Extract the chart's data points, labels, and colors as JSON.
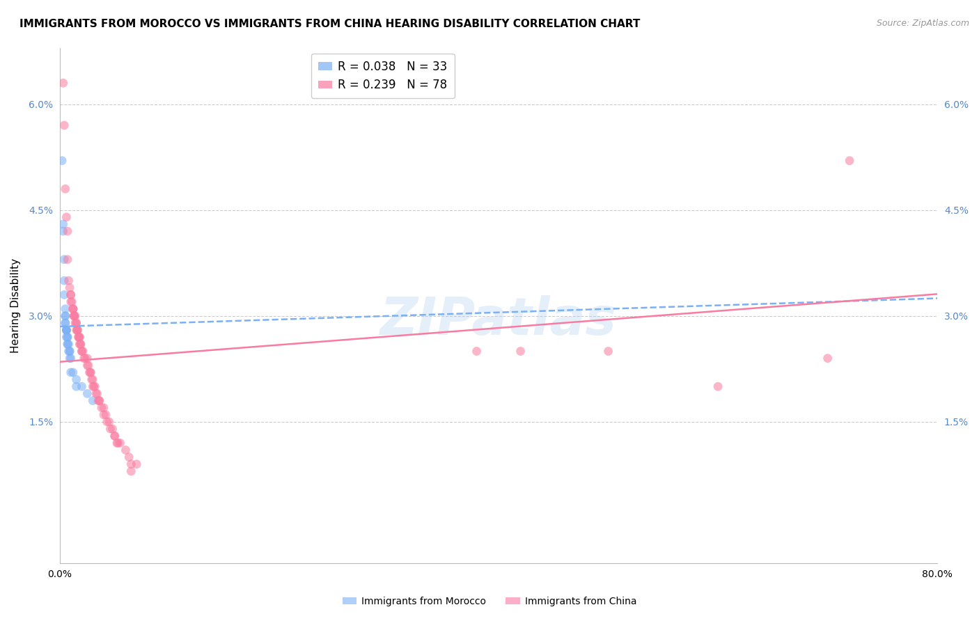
{
  "title": "IMMIGRANTS FROM MOROCCO VS IMMIGRANTS FROM CHINA HEARING DISABILITY CORRELATION CHART",
  "source": "Source: ZipAtlas.com",
  "ylabel": "Hearing Disability",
  "ytick_labels": [
    "1.5%",
    "3.0%",
    "4.5%",
    "6.0%"
  ],
  "ytick_values": [
    0.015,
    0.03,
    0.045,
    0.06
  ],
  "xlim": [
    0.0,
    0.8
  ],
  "ylim": [
    -0.005,
    0.068
  ],
  "legend_entries": [
    {
      "label": "R = 0.038   N = 33",
      "color": "#7ab0f5"
    },
    {
      "label": "R = 0.239   N = 78",
      "color": "#f97ba0"
    }
  ],
  "watermark": "ZIPatlas",
  "morocco_scatter": [
    [
      0.002,
      0.052
    ],
    [
      0.003,
      0.043
    ],
    [
      0.003,
      0.042
    ],
    [
      0.004,
      0.038
    ],
    [
      0.004,
      0.035
    ],
    [
      0.004,
      0.033
    ],
    [
      0.005,
      0.031
    ],
    [
      0.005,
      0.03
    ],
    [
      0.005,
      0.03
    ],
    [
      0.005,
      0.029
    ],
    [
      0.005,
      0.029
    ],
    [
      0.006,
      0.028
    ],
    [
      0.006,
      0.028
    ],
    [
      0.006,
      0.028
    ],
    [
      0.006,
      0.028
    ],
    [
      0.006,
      0.027
    ],
    [
      0.007,
      0.027
    ],
    [
      0.007,
      0.027
    ],
    [
      0.007,
      0.026
    ],
    [
      0.007,
      0.026
    ],
    [
      0.008,
      0.026
    ],
    [
      0.008,
      0.025
    ],
    [
      0.009,
      0.025
    ],
    [
      0.009,
      0.025
    ],
    [
      0.009,
      0.024
    ],
    [
      0.01,
      0.024
    ],
    [
      0.01,
      0.022
    ],
    [
      0.012,
      0.022
    ],
    [
      0.015,
      0.021
    ],
    [
      0.015,
      0.02
    ],
    [
      0.02,
      0.02
    ],
    [
      0.025,
      0.019
    ],
    [
      0.03,
      0.018
    ]
  ],
  "china_scatter": [
    [
      0.003,
      0.063
    ],
    [
      0.004,
      0.057
    ],
    [
      0.005,
      0.048
    ],
    [
      0.006,
      0.044
    ],
    [
      0.007,
      0.042
    ],
    [
      0.007,
      0.038
    ],
    [
      0.008,
      0.035
    ],
    [
      0.009,
      0.034
    ],
    [
      0.01,
      0.033
    ],
    [
      0.01,
      0.033
    ],
    [
      0.01,
      0.032
    ],
    [
      0.011,
      0.032
    ],
    [
      0.012,
      0.031
    ],
    [
      0.012,
      0.031
    ],
    [
      0.012,
      0.031
    ],
    [
      0.013,
      0.03
    ],
    [
      0.013,
      0.03
    ],
    [
      0.013,
      0.03
    ],
    [
      0.014,
      0.03
    ],
    [
      0.014,
      0.029
    ],
    [
      0.015,
      0.029
    ],
    [
      0.015,
      0.029
    ],
    [
      0.015,
      0.028
    ],
    [
      0.016,
      0.028
    ],
    [
      0.016,
      0.028
    ],
    [
      0.016,
      0.028
    ],
    [
      0.017,
      0.027
    ],
    [
      0.017,
      0.027
    ],
    [
      0.018,
      0.027
    ],
    [
      0.018,
      0.027
    ],
    [
      0.018,
      0.026
    ],
    [
      0.019,
      0.026
    ],
    [
      0.019,
      0.026
    ],
    [
      0.02,
      0.025
    ],
    [
      0.02,
      0.025
    ],
    [
      0.021,
      0.025
    ],
    [
      0.022,
      0.024
    ],
    [
      0.023,
      0.024
    ],
    [
      0.025,
      0.024
    ],
    [
      0.025,
      0.023
    ],
    [
      0.026,
      0.023
    ],
    [
      0.027,
      0.022
    ],
    [
      0.028,
      0.022
    ],
    [
      0.028,
      0.022
    ],
    [
      0.029,
      0.021
    ],
    [
      0.03,
      0.021
    ],
    [
      0.03,
      0.02
    ],
    [
      0.031,
      0.02
    ],
    [
      0.032,
      0.02
    ],
    [
      0.033,
      0.019
    ],
    [
      0.034,
      0.019
    ],
    [
      0.035,
      0.018
    ],
    [
      0.036,
      0.018
    ],
    [
      0.036,
      0.018
    ],
    [
      0.038,
      0.017
    ],
    [
      0.04,
      0.017
    ],
    [
      0.04,
      0.016
    ],
    [
      0.042,
      0.016
    ],
    [
      0.043,
      0.015
    ],
    [
      0.045,
      0.015
    ],
    [
      0.046,
      0.014
    ],
    [
      0.048,
      0.014
    ],
    [
      0.05,
      0.013
    ],
    [
      0.05,
      0.013
    ],
    [
      0.052,
      0.012
    ],
    [
      0.053,
      0.012
    ],
    [
      0.055,
      0.012
    ],
    [
      0.06,
      0.011
    ],
    [
      0.063,
      0.01
    ],
    [
      0.065,
      0.009
    ],
    [
      0.065,
      0.008
    ],
    [
      0.07,
      0.009
    ],
    [
      0.5,
      0.025
    ],
    [
      0.6,
      0.02
    ],
    [
      0.7,
      0.024
    ],
    [
      0.72,
      0.052
    ],
    [
      0.38,
      0.025
    ],
    [
      0.42,
      0.025
    ]
  ],
  "morocco_line_color": "#7ab0f5",
  "china_line_color": "#f97ba0",
  "scatter_alpha": 0.55,
  "scatter_size": 85,
  "background_color": "#ffffff",
  "grid_color": "#cccccc",
  "title_fontsize": 11,
  "axis_label_fontsize": 11,
  "tick_fontsize": 10,
  "legend_fontsize": 12,
  "source_fontsize": 9,
  "ytick_color": "#5588cc",
  "morocco_regression": {
    "slope": 0.005,
    "intercept": 0.0285
  },
  "china_regression": {
    "slope": 0.012,
    "intercept": 0.0235
  }
}
